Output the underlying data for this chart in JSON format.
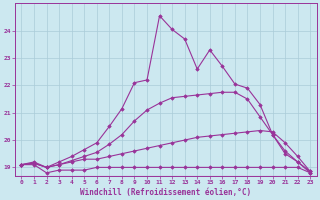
{
  "xlabel": "Windchill (Refroidissement éolien,°C)",
  "background_color": "#cce8f0",
  "grid_color": "#aaccd8",
  "line_color": "#993399",
  "x_values": [
    0,
    1,
    2,
    3,
    4,
    5,
    6,
    7,
    8,
    9,
    10,
    11,
    12,
    13,
    14,
    15,
    16,
    17,
    18,
    19,
    20,
    21,
    22,
    23
  ],
  "series": [
    [
      19.1,
      19.1,
      18.8,
      18.9,
      18.9,
      18.9,
      19.0,
      19.0,
      19.0,
      19.0,
      19.0,
      19.0,
      19.0,
      19.0,
      19.0,
      19.0,
      19.0,
      19.0,
      19.0,
      19.0,
      19.0,
      19.0,
      19.0,
      18.8
    ],
    [
      19.1,
      19.2,
      19.0,
      19.1,
      19.2,
      19.3,
      19.3,
      19.4,
      19.5,
      19.6,
      19.7,
      19.8,
      19.9,
      20.0,
      20.1,
      20.15,
      20.2,
      20.25,
      20.3,
      20.35,
      20.3,
      19.9,
      19.4,
      18.85
    ],
    [
      19.1,
      19.15,
      19.0,
      19.1,
      19.25,
      19.4,
      19.55,
      19.85,
      20.2,
      20.7,
      21.1,
      21.35,
      21.55,
      21.6,
      21.65,
      21.7,
      21.75,
      21.75,
      21.5,
      20.85,
      20.2,
      19.6,
      19.2,
      18.85
    ],
    [
      19.1,
      19.15,
      19.0,
      19.2,
      19.4,
      19.65,
      19.9,
      20.5,
      21.15,
      22.1,
      22.2,
      24.55,
      24.05,
      23.7,
      22.6,
      23.3,
      22.7,
      22.05,
      21.9,
      21.3,
      20.2,
      19.5,
      19.2,
      18.8
    ]
  ],
  "ylim": [
    18.7,
    25.0
  ],
  "xlim": [
    -0.5,
    23.5
  ],
  "yticks": [
    19,
    20,
    21,
    22,
    23,
    24
  ],
  "xticks": [
    0,
    1,
    2,
    3,
    4,
    5,
    6,
    7,
    8,
    9,
    10,
    11,
    12,
    13,
    14,
    15,
    16,
    17,
    18,
    19,
    20,
    21,
    22,
    23
  ],
  "tick_fontsize": 4.5,
  "xlabel_fontsize": 5.5,
  "marker": "D",
  "markersize": 1.8,
  "linewidth": 0.8
}
